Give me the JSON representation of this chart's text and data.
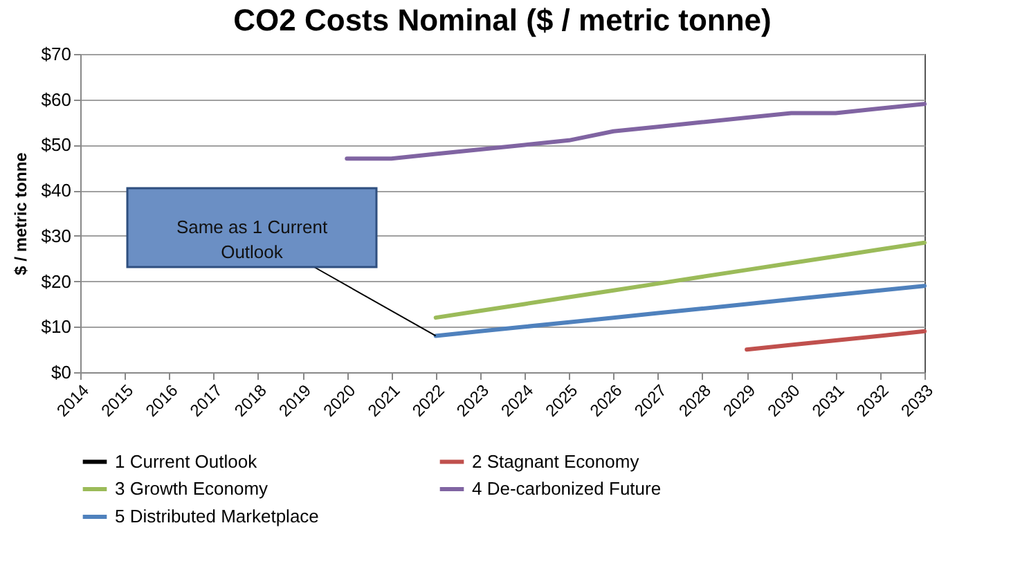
{
  "chart_data": {
    "type": "line",
    "title": "CO2 Costs Nominal ($ / metric tonne)",
    "ylabel": "$ / metric tonne",
    "categories": [
      "2014",
      "2015",
      "2016",
      "2017",
      "2018",
      "2019",
      "2020",
      "2021",
      "2022",
      "2023",
      "2024",
      "2025",
      "2026",
      "2027",
      "2028",
      "2029",
      "2030",
      "2031",
      "2032",
      "2033"
    ],
    "series": [
      {
        "name": "1 Current Outlook",
        "color": "#000000",
        "values": [
          null,
          null,
          null,
          null,
          null,
          null,
          null,
          null,
          null,
          null,
          null,
          null,
          null,
          null,
          null,
          null,
          null,
          null,
          null,
          null
        ]
      },
      {
        "name": "2 Stagnant Economy",
        "color": "#c0504d",
        "values": [
          null,
          null,
          null,
          null,
          null,
          null,
          null,
          null,
          null,
          null,
          null,
          null,
          null,
          null,
          null,
          5,
          6,
          7,
          8,
          9
        ]
      },
      {
        "name": "3 Growth Economy",
        "color": "#9bbb59",
        "values": [
          null,
          null,
          null,
          null,
          null,
          null,
          null,
          null,
          12,
          13.5,
          15,
          16.5,
          18,
          19.5,
          21,
          22.5,
          24,
          25.5,
          27,
          28.5
        ]
      },
      {
        "name": "4 De-carbonized Future",
        "color": "#8064a2",
        "values": [
          null,
          null,
          null,
          null,
          null,
          null,
          47,
          47,
          48,
          49,
          50,
          51,
          53,
          54,
          55,
          56,
          57,
          57,
          58,
          59
        ]
      },
      {
        "name": "5 Distributed Marketplace",
        "color": "#4f81bd",
        "values": [
          null,
          null,
          null,
          null,
          null,
          null,
          null,
          null,
          8,
          9,
          10,
          11,
          12,
          13,
          14,
          15,
          16,
          17,
          18,
          19
        ]
      }
    ],
    "ylim": [
      0,
      70
    ],
    "yticks": [
      {
        "value": 0,
        "label": "$0"
      },
      {
        "value": 10,
        "label": "$10"
      },
      {
        "value": 20,
        "label": "$20"
      },
      {
        "value": 30,
        "label": "$30"
      },
      {
        "value": 40,
        "label": "$40"
      },
      {
        "value": 50,
        "label": "$50"
      },
      {
        "value": 60,
        "label": "$60"
      },
      {
        "value": 70,
        "label": "$70"
      }
    ],
    "grid": "y",
    "legend": "bottom",
    "annotations": [
      {
        "text": "Same as 1 Current Outlook",
        "x": "2022",
        "y": 8
      }
    ]
  }
}
